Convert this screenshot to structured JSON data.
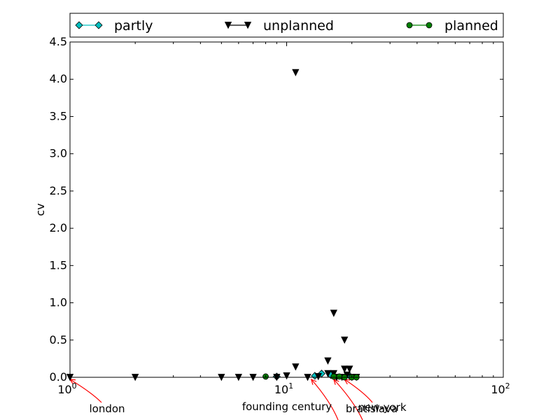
{
  "chart_data": {
    "type": "scatter",
    "title": "",
    "xlabel": "",
    "ylabel": "cv",
    "xscale": "log",
    "xlim": [
      1,
      100
    ],
    "ylim": [
      0,
      4.5
    ],
    "x_ticks": [
      {
        "value": 1,
        "base": "10",
        "exp": "0"
      },
      {
        "value": 10,
        "base": "10",
        "exp": "1"
      },
      {
        "value": 100,
        "base": "10",
        "exp": "2"
      }
    ],
    "y_ticks": [
      "0.0",
      "0.5",
      "1.0",
      "1.5",
      "2.0",
      "2.5",
      "3.0",
      "3.5",
      "4.0",
      "4.5"
    ],
    "grid": false,
    "legend_position": "top",
    "series": [
      {
        "name": "partly",
        "marker": "diamond",
        "color": "#00bfbf",
        "points": [
          [
            9.0,
            0.01
          ],
          [
            13.5,
            0.02
          ],
          [
            14.5,
            0.05
          ],
          [
            16.0,
            0.03
          ],
          [
            19.5,
            0.02
          ]
        ]
      },
      {
        "name": "unplanned",
        "marker": "triangle-down",
        "color": "#000000",
        "points": [
          [
            1.0,
            0.0
          ],
          [
            2.0,
            0.0
          ],
          [
            5.0,
            0.0
          ],
          [
            6.0,
            0.0
          ],
          [
            7.0,
            0.0
          ],
          [
            9.0,
            0.0
          ],
          [
            10.0,
            0.02
          ],
          [
            11.0,
            0.14
          ],
          [
            11.0,
            4.09
          ],
          [
            12.5,
            0.0
          ],
          [
            14.0,
            0.01
          ],
          [
            15.5,
            0.22
          ],
          [
            15.5,
            0.05
          ],
          [
            16.5,
            0.86
          ],
          [
            16.5,
            0.05
          ],
          [
            17.0,
            0.0
          ],
          [
            18.0,
            0.0
          ],
          [
            18.5,
            0.5
          ],
          [
            18.5,
            0.11
          ],
          [
            19.5,
            0.11
          ],
          [
            19.0,
            0.03
          ],
          [
            20.0,
            0.0
          ],
          [
            21.0,
            0.0
          ]
        ]
      },
      {
        "name": "planned",
        "marker": "circle",
        "color": "#007f00",
        "points": [
          [
            8.0,
            0.01
          ],
          [
            16.5,
            0.01
          ],
          [
            17.5,
            0.01
          ],
          [
            18.5,
            0.0
          ],
          [
            20.0,
            0.0
          ],
          [
            21.0,
            0.0
          ]
        ]
      }
    ],
    "annotations": [
      {
        "text": "london",
        "x": 1,
        "y": 0
      },
      {
        "text": "founding century",
        "x": 13,
        "y": 0
      },
      {
        "text": "bratislava",
        "x": 16.5,
        "y": 0
      },
      {
        "text": "new-york",
        "x": 18.5,
        "y": 0
      }
    ]
  }
}
